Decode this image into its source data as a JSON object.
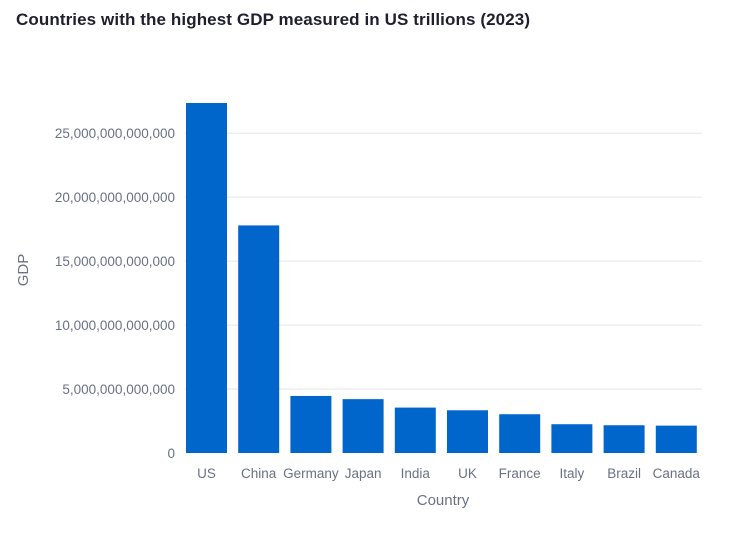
{
  "chart_data": {
    "type": "bar",
    "title": "Countries with the highest GDP measured in US trillions (2023)",
    "xlabel": "Country",
    "ylabel": "GDP",
    "categories": [
      "US",
      "China",
      "Germany",
      "Japan",
      "India",
      "UK",
      "France",
      "Italy",
      "Brazil",
      "Canada"
    ],
    "values": [
      27360000000000,
      17790000000000,
      4460000000000,
      4210000000000,
      3550000000000,
      3340000000000,
      3030000000000,
      2250000000000,
      2170000000000,
      2140000000000
    ],
    "yticks": [
      0,
      5000000000000,
      10000000000000,
      15000000000000,
      20000000000000,
      25000000000000
    ],
    "ytick_labels": [
      "0",
      "5,000,000,000,000",
      "10,000,000,000,000",
      "15,000,000,000,000",
      "20,000,000,000,000",
      "25,000,000,000,000"
    ],
    "ylim": [
      0,
      27360000000000
    ],
    "grid": true,
    "legend": "none",
    "bar_color": "#0066cc",
    "grid_color": "#e6e6ec"
  }
}
